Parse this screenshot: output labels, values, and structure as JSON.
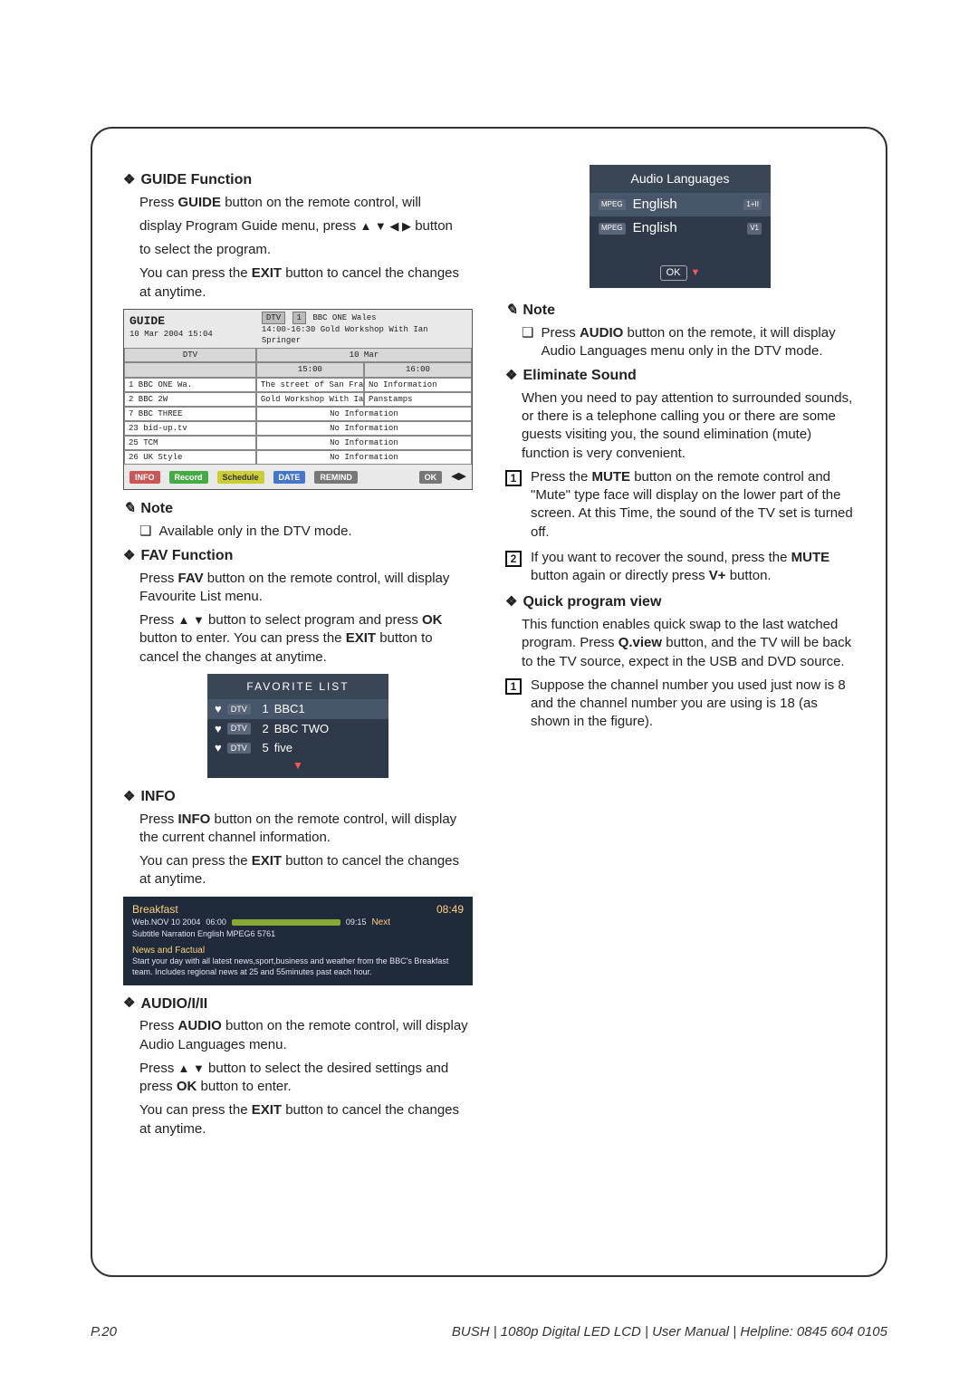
{
  "page_number": "P.20",
  "footer_text": "BUSH  | 1080p  Digital LED LCD | User Manual | Helpline: 0845 604 0105",
  "left": {
    "guide": {
      "title": "GUIDE Function",
      "p1a": "Press ",
      "p1b": "GUIDE",
      "p1c": " button on the remote control, will",
      "p2a": "display Program Guide menu, press ",
      "p2b": " button",
      "p3": "to select the program.",
      "p4a": "You can press the ",
      "p4b": "EXIT",
      "p4c": " button to cancel the changes at anytime."
    },
    "guide_shot": {
      "title": "GUIDE",
      "date": "10 Mar 2004 15:04",
      "dtv": "DTV",
      "num": "1",
      "ch": "BBC ONE Wales",
      "time": "14:00-16:30",
      "prog": "Gold Workshop With Ian Springer",
      "day_header": "10 Mar",
      "t1": "15:00",
      "t2": "16:00",
      "colhead": "DTV",
      "rows": [
        {
          "ch": "1 BBC ONE Wa.",
          "a": "The street of San Fra...",
          "b": "No Information"
        },
        {
          "ch": "2 BBC 2W",
          "a": "Gold Workshop With Ian Springer",
          "b": "Panstamps"
        },
        {
          "ch": "7 BBC THREE",
          "full": "No Information"
        },
        {
          "ch": "23 bid-up.tv",
          "full": "No Information"
        },
        {
          "ch": "25 TCM",
          "full": "No Information"
        },
        {
          "ch": "26 UK Style",
          "full": "No Information"
        }
      ],
      "btns": {
        "info": "INFO",
        "record": "Record",
        "schedule": "Schedule",
        "date": "DATE",
        "remind": "REMIND",
        "ok": "OK"
      }
    },
    "note1": {
      "title": "Note",
      "text": "Available only in the DTV mode."
    },
    "fav": {
      "title": "FAV Function",
      "p1a": "Press ",
      "p1b": "FAV",
      "p1c": " button on the remote control, will display Favourite List menu.",
      "p2a": "Press ",
      "p2b": " button to select program and press ",
      "p2c": "OK",
      "p2d": " button to enter. You can press the ",
      "p2e": "EXIT",
      "p2f": " button to cancel the changes at anytime."
    },
    "fav_shot": {
      "title": "FAVORITE LIST",
      "rows": [
        {
          "tag": "DTV",
          "n": "1",
          "name": "BBC1"
        },
        {
          "tag": "DTV",
          "n": "2",
          "name": "BBC TWO"
        },
        {
          "tag": "DTV",
          "n": "5",
          "name": "five"
        }
      ]
    },
    "info": {
      "title": "INFO",
      "p1a": "Press ",
      "p1b": "INFO",
      "p1c": " button on the remote control, will display the current channel information.",
      "p2a": "You can press the ",
      "p2b": "EXIT",
      "p2c": " button to cancel the changes at anytime."
    },
    "info_shot": {
      "l1": "Breakfast",
      "clock": "08:49",
      "next": "Next",
      "l2_date": "Web.NOV 10 2004",
      "l2_t1": "06:00",
      "l2_t2": "09:15",
      "l3": "Subtitle Narration English MPEG6 5761",
      "sec_hd": "News and Factual",
      "sec_body": "Start your day with all latest news,sport,business and weather from the BBC's Breakfast team. Includes regional news at 25 and 55minutes past each hour."
    },
    "audio": {
      "title": "AUDIO/I/II",
      "p1a": "Press ",
      "p1b": "AUDIO",
      "p1c": " button on the remote control, will display Audio Languages menu.",
      "p2a": "Press ",
      "p2b": " button to select the desired settings and press ",
      "p2c": "OK",
      "p2d": " button to enter.",
      "p3a": "You can press the ",
      "p3b": "EXIT",
      "p3c": " button to cancel the changes at anytime."
    }
  },
  "right": {
    "audio_shot": {
      "title": "Audio Languages",
      "rows": [
        {
          "mp": "MPEG",
          "lang": "English",
          "ch": "1+II"
        },
        {
          "mp": "MPEG",
          "lang": "English",
          "ch": "V1"
        }
      ],
      "ok": "OK"
    },
    "note2": {
      "title": "Note",
      "t1a": "Press ",
      "t1b": "AUDIO",
      "t1c": " button on the remote, it will display Audio Languages menu only in the DTV mode."
    },
    "elim": {
      "title": "Eliminate Sound",
      "p1": "When you need to pay attention to surrounded sounds, or there is a telephone calling you or there are some guests visiting you, the sound elimination (mute) function is very convenient.",
      "n1a": "Press the ",
      "n1b": "MUTE",
      "n1c": " button on the remote control and \"Mute\" type face will display on the lower part of the screen. At this Time, the sound of the TV set is turned off.",
      "n2a": "If you want to recover the sound, press the ",
      "n2b": "MUTE",
      "n2c": " button again or directly press ",
      "n2d": "V+",
      "n2e": " button."
    },
    "quick": {
      "title": "Quick program view",
      "p1a": "This function enables quick swap to the last watched program. Press ",
      "p1b": "Q.view",
      "p1c": " button, and the TV will be back to the TV source, expect in the USB and DVD source.",
      "n1": "Suppose the channel number you used just now is 8 and the channel number you are using is 18 (as shown in the figure)."
    }
  }
}
